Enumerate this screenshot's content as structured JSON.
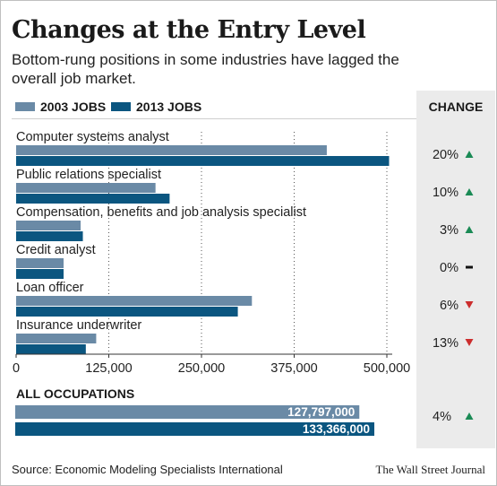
{
  "title": "Changes at the Entry Level",
  "subtitle": "Bottom-rung positions in some industries have lagged the overall job market.",
  "legend": [
    {
      "label": "2003 JOBS",
      "color": "#6a8aa6"
    },
    {
      "label": "2013 JOBS",
      "color": "#0b5680"
    }
  ],
  "change_header": "CHANGE",
  "colors": {
    "up": "#1a8a55",
    "down": "#cc2d2d",
    "flat": "#111111",
    "panel": "#ebebeb"
  },
  "chart_data": [
    {
      "type": "bar",
      "orientation": "horizontal",
      "categories": [
        "Computer systems analyst",
        "Public relations specialist",
        "Compensation, benefits and job analysis specialist",
        "Credit analyst",
        "Loan officer",
        "Insurance underwriter"
      ],
      "series": [
        {
          "name": "2003 JOBS",
          "values": [
            419000,
            188000,
            87000,
            64000,
            318000,
            108000
          ]
        },
        {
          "name": "2013 JOBS",
          "values": [
            503000,
            207000,
            90000,
            64000,
            299000,
            94000
          ]
        }
      ],
      "change": [
        {
          "text": "20%",
          "direction": "up"
        },
        {
          "text": "10%",
          "direction": "up"
        },
        {
          "text": "3%",
          "direction": "up"
        },
        {
          "text": "0%",
          "direction": "flat"
        },
        {
          "text": "6%",
          "direction": "down"
        },
        {
          "text": "13%",
          "direction": "down"
        }
      ],
      "xlim": [
        0,
        500000
      ],
      "xticks": [
        0,
        125000,
        250000,
        375000,
        500000
      ],
      "xtick_labels": [
        "0",
        "125,000",
        "250,000",
        "375,000",
        "500,000"
      ],
      "grid": "dotted vertical"
    },
    {
      "type": "bar",
      "orientation": "horizontal",
      "title": "ALL OCCUPATIONS",
      "series": [
        {
          "name": "2003 JOBS",
          "values": [
            127797000
          ],
          "labels": [
            "127,797,000"
          ]
        },
        {
          "name": "2013 JOBS",
          "values": [
            133366000
          ],
          "labels": [
            "133,366,000"
          ]
        }
      ],
      "change": {
        "text": "4%",
        "direction": "up"
      }
    }
  ],
  "footer": {
    "source": "Source: Economic Modeling Specialists International",
    "credit": "The Wall Street Journal"
  }
}
